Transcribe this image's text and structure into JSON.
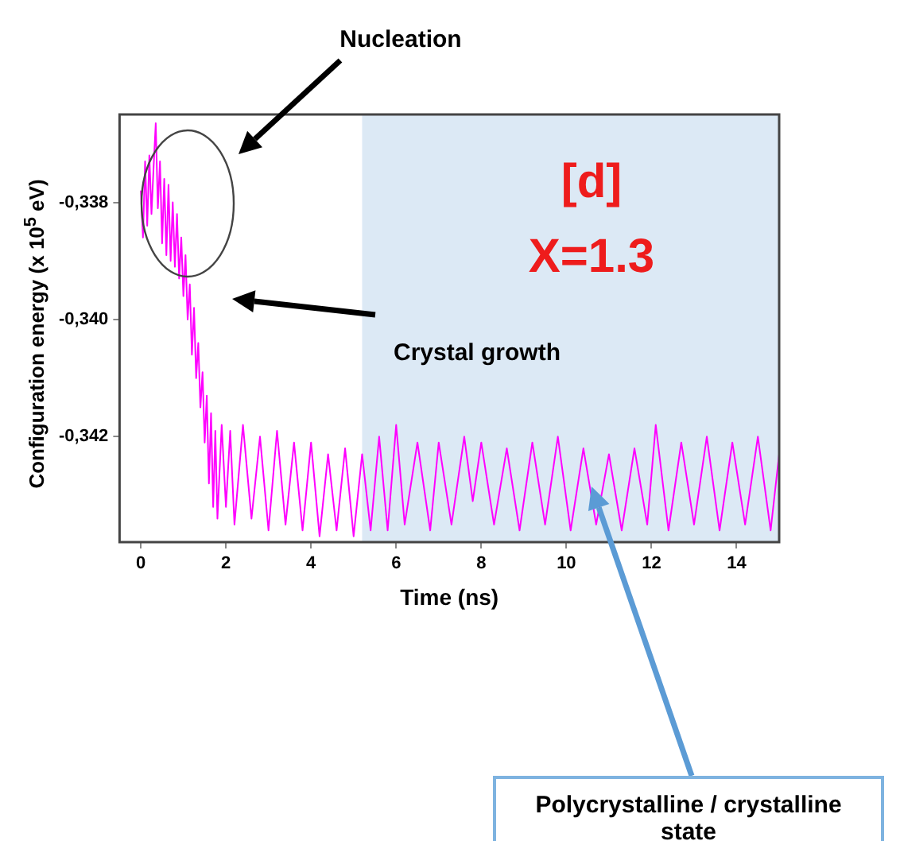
{
  "chart_data": {
    "type": "line",
    "xlabel": "Time (ns)",
    "ylabel": "Configuration energy (x 10$^{5}$ eV)",
    "xlim": [
      -0.5,
      15
    ],
    "xticks": [
      0,
      2,
      4,
      6,
      8,
      10,
      12,
      14
    ],
    "ylim": [
      -0.3438,
      -0.3365
    ],
    "yticks": [
      {
        "value": -0.338,
        "label": "-0,338"
      },
      {
        "value": -0.34,
        "label": "-0,340"
      },
      {
        "value": -0.342,
        "label": "-0,342"
      }
    ],
    "grid": false,
    "legend": false,
    "marker": "none",
    "line_style": "solid",
    "bands": [
      {
        "axis": "x",
        "from": 5.2,
        "to": 15,
        "color": "#dce9f5"
      }
    ],
    "annotations": [
      "Nucleation",
      "Crystal growth",
      "Polycrystalline / crystalline state",
      "[d]",
      "X=1.3"
    ],
    "series": [
      {
        "color": "#ff00ff",
        "x": [
          0,
          0.05,
          0.1,
          0.15,
          0.2,
          0.25,
          0.3,
          0.35,
          0.4,
          0.45,
          0.5,
          0.55,
          0.6,
          0.65,
          0.7,
          0.75,
          0.8,
          0.85,
          0.9,
          0.95,
          1.0,
          1.05,
          1.1,
          1.15,
          1.2,
          1.25,
          1.3,
          1.35,
          1.4,
          1.45,
          1.5,
          1.55,
          1.6,
          1.65,
          1.7,
          1.75,
          1.8,
          1.9,
          2.0,
          2.1,
          2.2,
          2.4,
          2.6,
          2.8,
          3.0,
          3.2,
          3.4,
          3.6,
          3.8,
          4.0,
          4.2,
          4.4,
          4.6,
          4.8,
          5.0,
          5.2,
          5.4,
          5.6,
          5.8,
          6.0,
          6.2,
          6.5,
          6.8,
          7.0,
          7.3,
          7.6,
          7.8,
          8.0,
          8.3,
          8.6,
          8.9,
          9.2,
          9.5,
          9.8,
          10.1,
          10.4,
          10.7,
          11.0,
          11.3,
          11.6,
          11.9,
          12.1,
          12.4,
          12.7,
          13.0,
          13.3,
          13.6,
          13.9,
          14.2,
          14.5,
          14.8,
          15.0
        ],
        "values": [
          -0.3378,
          -0.3386,
          -0.3373,
          -0.3384,
          -0.3372,
          -0.3382,
          -0.3374,
          -0.33665,
          -0.3381,
          -0.3373,
          -0.3387,
          -0.3376,
          -0.3389,
          -0.3377,
          -0.339,
          -0.338,
          -0.3391,
          -0.3382,
          -0.3393,
          -0.3386,
          -0.3396,
          -0.3389,
          -0.34,
          -0.3394,
          -0.3406,
          -0.3398,
          -0.341,
          -0.3404,
          -0.3415,
          -0.3409,
          -0.3421,
          -0.3413,
          -0.3428,
          -0.3416,
          -0.3432,
          -0.3419,
          -0.3434,
          -0.3418,
          -0.3432,
          -0.3419,
          -0.3435,
          -0.3418,
          -0.3434,
          -0.342,
          -0.3436,
          -0.3419,
          -0.3435,
          -0.3421,
          -0.3436,
          -0.3421,
          -0.3437,
          -0.3423,
          -0.3436,
          -0.3422,
          -0.3437,
          -0.3423,
          -0.3436,
          -0.342,
          -0.3436,
          -0.3418,
          -0.3435,
          -0.3421,
          -0.3436,
          -0.3421,
          -0.3435,
          -0.342,
          -0.3431,
          -0.3421,
          -0.3435,
          -0.3422,
          -0.3436,
          -0.3421,
          -0.3435,
          -0.342,
          -0.3436,
          -0.3422,
          -0.3435,
          -0.3423,
          -0.3436,
          -0.3422,
          -0.3435,
          -0.3418,
          -0.3436,
          -0.3421,
          -0.3435,
          -0.342,
          -0.3436,
          -0.3421,
          -0.3435,
          -0.342,
          -0.3436,
          -0.3423
        ]
      }
    ]
  }
}
